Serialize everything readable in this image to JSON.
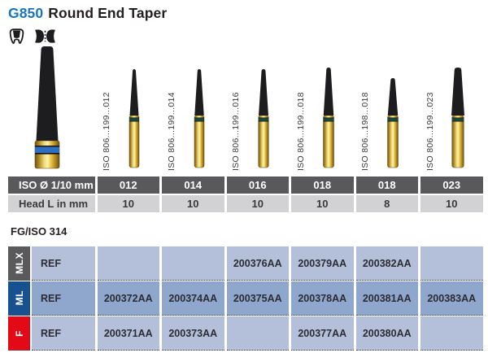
{
  "page": {
    "title_code": "G850",
    "title_name": "Round End Taper",
    "standard_label": "FG/ISO 314"
  },
  "icons": [
    {
      "name": "crown-prep-tooth-icon"
    },
    {
      "name": "bridge-teeth-icon"
    }
  ],
  "burs": {
    "iso_labels": [
      "ISO 806...199...012",
      "ISO 806...199...014",
      "ISO 806...199...016",
      "ISO 806...199...018",
      "ISO 806...198...018",
      "ISO 806...199...023"
    ]
  },
  "spec_table": {
    "rows": [
      {
        "label": "ISO Ø 1/10 mm",
        "values": [
          "012",
          "014",
          "016",
          "018",
          "018",
          "023"
        ]
      },
      {
        "label": "Head L in mm",
        "values": [
          "10",
          "10",
          "10",
          "10",
          "8",
          "10"
        ]
      }
    ]
  },
  "ref_table": {
    "ref_label": "REF",
    "rows": [
      {
        "grit": "MLX",
        "label_color": "#5a5a5c",
        "row_color": "#b4c0d9",
        "values": [
          "",
          "",
          "200376AA",
          "200379AA",
          "200382AA",
          ""
        ]
      },
      {
        "grit": "ML",
        "label_color": "#17518f",
        "row_color": "#8fa7cc",
        "values": [
          "200372AA",
          "200374AA",
          "200375AA",
          "200378AA",
          "200381AA",
          "200383AA"
        ]
      },
      {
        "grit": "F",
        "label_color": "#e30917",
        "row_color": "#b4c0d9",
        "values": [
          "200371AA",
          "200373AA",
          "",
          "200377AA",
          "200380AA",
          ""
        ]
      }
    ]
  },
  "colors": {
    "accent_blue": "#1a75bc",
    "header_gray": "#59595b",
    "header_light_gray": "#d2d2d4",
    "bur_head_black": "#1d1d1f",
    "bur_ring_teal": "#15493d",
    "bur_ring_blue": "#2e6fc4",
    "bur_gold": "#e7bd35"
  }
}
